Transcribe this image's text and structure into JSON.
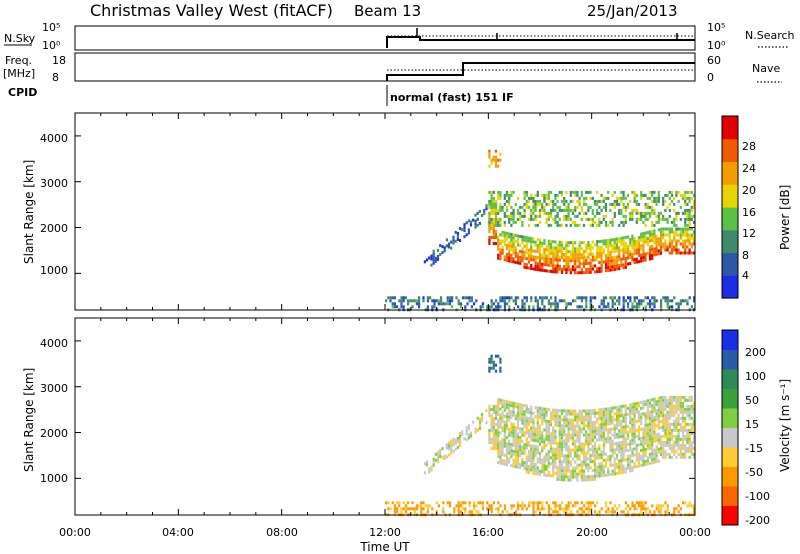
{
  "header": {
    "station": "Christmas Valley West (fitACF)",
    "beam": "Beam 13",
    "date": "25/Jan/2013"
  },
  "panels": {
    "nsky": {
      "label": "N.Sky",
      "tick_top": "10^5",
      "tick_bottom": "10^0"
    },
    "nsearch": {
      "label": "N.Search",
      "tick_top": "10^5",
      "tick_bottom": "10^0"
    },
    "freq": {
      "label_line1": "Freq.",
      "label_line2": "[MHz]",
      "tick_top": "18",
      "tick_bottom": "8"
    },
    "nave": {
      "label": "Nave",
      "tick_top": "60",
      "tick_bottom": "0"
    },
    "cpid": {
      "label": "CPID",
      "mode": "normal (fast) 151 IF"
    }
  },
  "colors": {
    "power": [
      "#1b2fe6",
      "#2d58a8",
      "#3f8a6a",
      "#5bbf48",
      "#e8d400",
      "#f59c00",
      "#f25a00",
      "#e00000"
    ],
    "velocity": [
      "#ff0000",
      "#ff6600",
      "#ff9900",
      "#ffcc33",
      "#c8c8c8",
      "#7fd040",
      "#3aa23a",
      "#2e8b57",
      "#2b5aa8",
      "#1b2fe6"
    ]
  },
  "chart_data": [
    {
      "type": "heatmap",
      "ylabel": "Slant Range [km]",
      "xlabel": "",
      "yticks": [
        "1000",
        "2000",
        "3000",
        "4000"
      ],
      "ylim": [
        200,
        4500
      ],
      "xlim": [
        "00:00",
        "24:00"
      ],
      "colorbar": {
        "label": "Power [dB]",
        "ticks": [
          "4",
          "8",
          "12",
          "16",
          "20",
          "24",
          "28"
        ]
      },
      "features": [
        {
          "desc": "near-range ground clutter",
          "t_start": "12:00",
          "t_end": "24:00",
          "range_km": [
            200,
            500
          ],
          "value_db": 8
        },
        {
          "desc": "rising scatter arc",
          "t_start": "13:30",
          "t_end": "16:00",
          "range_km": [
            1000,
            2600
          ],
          "value_db": 6
        },
        {
          "desc": "strong main echo band",
          "t_start": "16:00",
          "t_end": "24:00",
          "range_km": [
            900,
            2000
          ],
          "value_db": 26
        },
        {
          "desc": "upper weak scatter",
          "t_start": "16:00",
          "t_end": "24:00",
          "range_km": [
            2000,
            2800
          ],
          "value_db": 14
        },
        {
          "desc": "high-range patch",
          "t_start": "16:00",
          "t_end": "16:30",
          "range_km": [
            3300,
            3700
          ],
          "value_db": 22
        }
      ]
    },
    {
      "type": "heatmap",
      "ylabel": "Slant Range [km]",
      "xlabel": "Time UT",
      "yticks": [
        "1000",
        "2000",
        "3000",
        "4000"
      ],
      "xticks": [
        "00:00",
        "04:00",
        "08:00",
        "12:00",
        "16:00",
        "20:00",
        "00:00"
      ],
      "ylim": [
        200,
        4500
      ],
      "colorbar": {
        "label": "Velocity [m s^-1]",
        "ticks": [
          "200",
          "100",
          "50",
          "15",
          "-15",
          "-50",
          "-100",
          "-200"
        ]
      },
      "features": [
        {
          "desc": "near-range clutter",
          "t_start": "12:00",
          "t_end": "24:00",
          "range_km": [
            200,
            500
          ],
          "value_ms": -60
        },
        {
          "desc": "rising scatter arc",
          "t_start": "13:30",
          "t_end": "16:00",
          "range_km": [
            1000,
            2600
          ],
          "value_ms": 0
        },
        {
          "desc": "main ground-scatter band",
          "t_start": "16:00",
          "t_end": "24:00",
          "range_km": [
            900,
            2800
          ],
          "value_ms": 0
        },
        {
          "desc": "high-range patch",
          "t_start": "16:00",
          "t_end": "16:30",
          "range_km": [
            3300,
            3700
          ],
          "value_ms": 200
        }
      ]
    }
  ]
}
